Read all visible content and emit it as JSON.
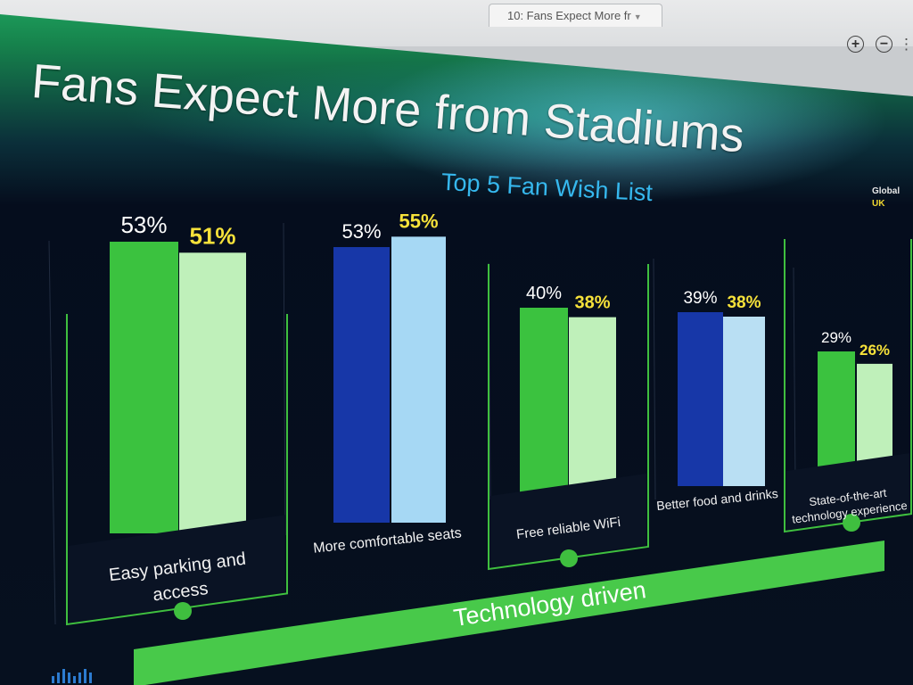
{
  "window": {
    "tab_label": "10: Fans Expect More fr",
    "zoom_in_label": "+",
    "zoom_out_label": "−",
    "side_glyph": "⋮"
  },
  "slide": {
    "title": "Fans Expect More from Stadiums",
    "banner_label": "Technology driven"
  },
  "chart_data": {
    "type": "bar",
    "title": "Top 5 Fan Wish List",
    "categories": [
      "Easy parking and access",
      "More comfortable seats",
      "Free reliable WiFi",
      "Better food and drinks",
      "State-of-the-art technology experience"
    ],
    "category_label_lines": [
      [
        "Easy parking and",
        "access"
      ],
      [
        "More comfortable seats"
      ],
      [
        "Free reliable WiFi"
      ],
      [
        "Better food and drinks"
      ],
      [
        "State-of-the-art",
        "technology experience"
      ]
    ],
    "series": [
      {
        "name": "Global",
        "values": [
          53,
          53,
          40,
          39,
          29
        ],
        "labels": [
          "53%",
          "53%",
          "40%",
          "39%",
          "29%"
        ]
      },
      {
        "name": "UK",
        "values": [
          51,
          55,
          38,
          38,
          26
        ],
        "labels": [
          "51%",
          "55%",
          "38%",
          "38%",
          "26%"
        ]
      }
    ],
    "bar_colors": [
      [
        "#3bc23f",
        "#bff0ba"
      ],
      [
        "#1737a8",
        "#a6d8f4"
      ],
      [
        "#3bc23f",
        "#bff0ba"
      ],
      [
        "#1737a8",
        "#b9dff3"
      ],
      [
        "#3bc23f",
        "#bff0ba"
      ]
    ],
    "ylim": [
      0,
      60
    ],
    "legend_position": "top-right",
    "colors": {
      "title": "#36b8ee",
      "global_label": "#ffffff",
      "uk_label": "#f7e23a",
      "legend_global": "#e8e8e8",
      "legend_uk": "#f0d830",
      "accent_green": "#3fbf3f"
    }
  }
}
